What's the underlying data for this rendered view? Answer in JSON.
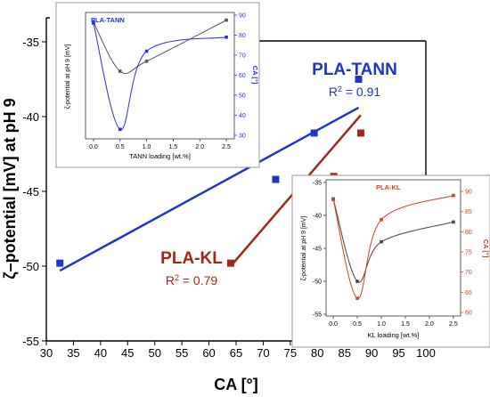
{
  "chart_data": [
    {
      "id": "main",
      "type": "scatter",
      "xlabel": "CA [°]",
      "ylabel": "ζ–potential [mV] at pH 9",
      "xlim": [
        30,
        100
      ],
      "ylim": [
        -55,
        -33
      ],
      "xticks": [
        30,
        35,
        40,
        45,
        50,
        55,
        60,
        65,
        70,
        75,
        80,
        85,
        90,
        95,
        100
      ],
      "yticks": [
        -35,
        -40,
        -45,
        -50,
        -55
      ],
      "series": [
        {
          "name": "PLA-TANN",
          "color": "#1f35c8",
          "marker": "square",
          "points": [
            [
              32.5,
              -49.8
            ],
            [
              72.3,
              -44.2
            ],
            [
              79.4,
              -41.1
            ],
            [
              87.6,
              -37.5
            ]
          ],
          "fit": {
            "x": [
              32.5,
              87.6
            ],
            "y": [
              -50.3,
              -39.4
            ]
          },
          "r2_label": "R",
          "r2_sup": "2",
          "r2_value": "= 0.91"
        },
        {
          "name": "PLA-KL",
          "color": "#9b2a1b",
          "marker": "square",
          "points": [
            [
              64.0,
              -49.8
            ],
            [
              83.0,
              -44.0
            ],
            [
              88.0,
              -41.1
            ]
          ],
          "fit": {
            "x": [
              64.0,
              88.0
            ],
            "y": [
              -50.0,
              -39.9
            ]
          },
          "r2_label": "R",
          "r2_sup": "2",
          "r2_value": "= 0.79"
        }
      ]
    },
    {
      "id": "inset-tann",
      "type": "line",
      "title": "PLA-TANN",
      "xlabel": "TANN loading [wt.%]",
      "ylabel_left": "ζ-potential at pH 9 [mV]",
      "ylabel_right": "CA [°]",
      "xlim": [
        -0.15,
        2.65
      ],
      "xticks": [
        "0.0",
        "0.5",
        "1.0",
        "1.5",
        "2.0",
        "2.5"
      ],
      "y_right_lim": [
        30,
        90
      ],
      "y_right_ticks": [
        "30",
        "40",
        "50",
        "60",
        "70",
        "80",
        "90"
      ],
      "series": [
        {
          "name": "ζ-potential",
          "axis": "left",
          "color": "#555555",
          "marker": "square",
          "x": [
            0.0,
            0.5,
            1.0,
            2.5
          ],
          "y_right_equiv": [
            86.5,
            62,
            67,
            87.5
          ]
        },
        {
          "name": "CA",
          "axis": "right",
          "color": "#2233dd",
          "marker": "square",
          "x": [
            0.0,
            0.5,
            1.0,
            2.5
          ],
          "y": [
            86,
            33,
            72,
            79
          ]
        }
      ]
    },
    {
      "id": "inset-kl",
      "type": "line",
      "title": "PLA-KL",
      "xlabel": "KL loading [wt.%]",
      "ylabel_left": "ζ-potential at pH 9 [mV]",
      "ylabel_right": "CA [°]",
      "xlim": [
        -0.15,
        2.65
      ],
      "xticks": [
        "0.0",
        "0.5",
        "1.0",
        "1.5",
        "2.0",
        "2.5"
      ],
      "y_left_lim": [
        -55,
        -35
      ],
      "y_left_ticks": [
        "-35",
        "-40",
        "-45",
        "-50",
        "-55"
      ],
      "y_right_lim": [
        60,
        92
      ],
      "y_right_ticks": [
        "60",
        "65",
        "70",
        "75",
        "80",
        "85",
        "90"
      ],
      "series": [
        {
          "name": "ζ-potential",
          "axis": "left",
          "color": "#444444",
          "marker": "square",
          "x": [
            0.0,
            0.5,
            1.0,
            2.5
          ],
          "y": [
            -37.5,
            -50,
            -44,
            -41
          ]
        },
        {
          "name": "CA",
          "axis": "right",
          "color": "#cc4422",
          "marker": "square",
          "x": [
            0.0,
            0.5,
            1.0,
            2.5
          ],
          "y": [
            88,
            63.5,
            83,
            89
          ]
        }
      ]
    }
  ]
}
